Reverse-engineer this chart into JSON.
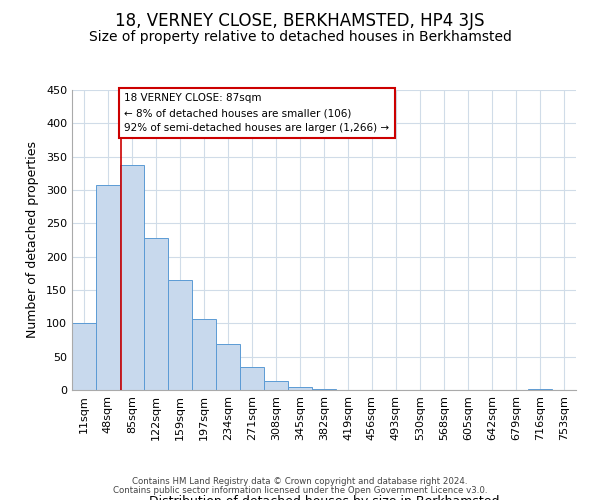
{
  "title": "18, VERNEY CLOSE, BERKHAMSTED, HP4 3JS",
  "subtitle": "Size of property relative to detached houses in Berkhamsted",
  "xlabel": "Distribution of detached houses by size in Berkhamsted",
  "ylabel": "Number of detached properties",
  "bar_edges": [
    11,
    48,
    85,
    122,
    159,
    197,
    234,
    271,
    308,
    345,
    382,
    419,
    456,
    493,
    530,
    568,
    605,
    642,
    679,
    716,
    753
  ],
  "bar_heights": [
    100,
    308,
    337,
    228,
    165,
    107,
    69,
    34,
    14,
    5,
    1,
    0,
    0,
    0,
    0,
    0,
    0,
    0,
    0,
    2
  ],
  "bar_fill_color": "#c8d9ed",
  "bar_edge_color": "#5b9bd5",
  "grid_color": "#d0dce8",
  "property_line_x": 87,
  "property_line_color": "#cc0000",
  "annotation_line1": "18 VERNEY CLOSE: 87sqm",
  "annotation_line2": "← 8% of detached houses are smaller (106)",
  "annotation_line3": "92% of semi-detached houses are larger (1,266) →",
  "annotation_box_color": "#ffffff",
  "annotation_box_edge_color": "#cc0000",
  "ylim": [
    0,
    450
  ],
  "tick_labels": [
    "11sqm",
    "48sqm",
    "85sqm",
    "122sqm",
    "159sqm",
    "197sqm",
    "234sqm",
    "271sqm",
    "308sqm",
    "345sqm",
    "382sqm",
    "419sqm",
    "456sqm",
    "493sqm",
    "530sqm",
    "568sqm",
    "605sqm",
    "642sqm",
    "679sqm",
    "716sqm",
    "753sqm"
  ],
  "footnote1": "Contains HM Land Registry data © Crown copyright and database right 2024.",
  "footnote2": "Contains public sector information licensed under the Open Government Licence v3.0.",
  "bg_color": "#ffffff",
  "title_fontsize": 12,
  "subtitle_fontsize": 10,
  "xlabel_fontsize": 9,
  "ylabel_fontsize": 9
}
